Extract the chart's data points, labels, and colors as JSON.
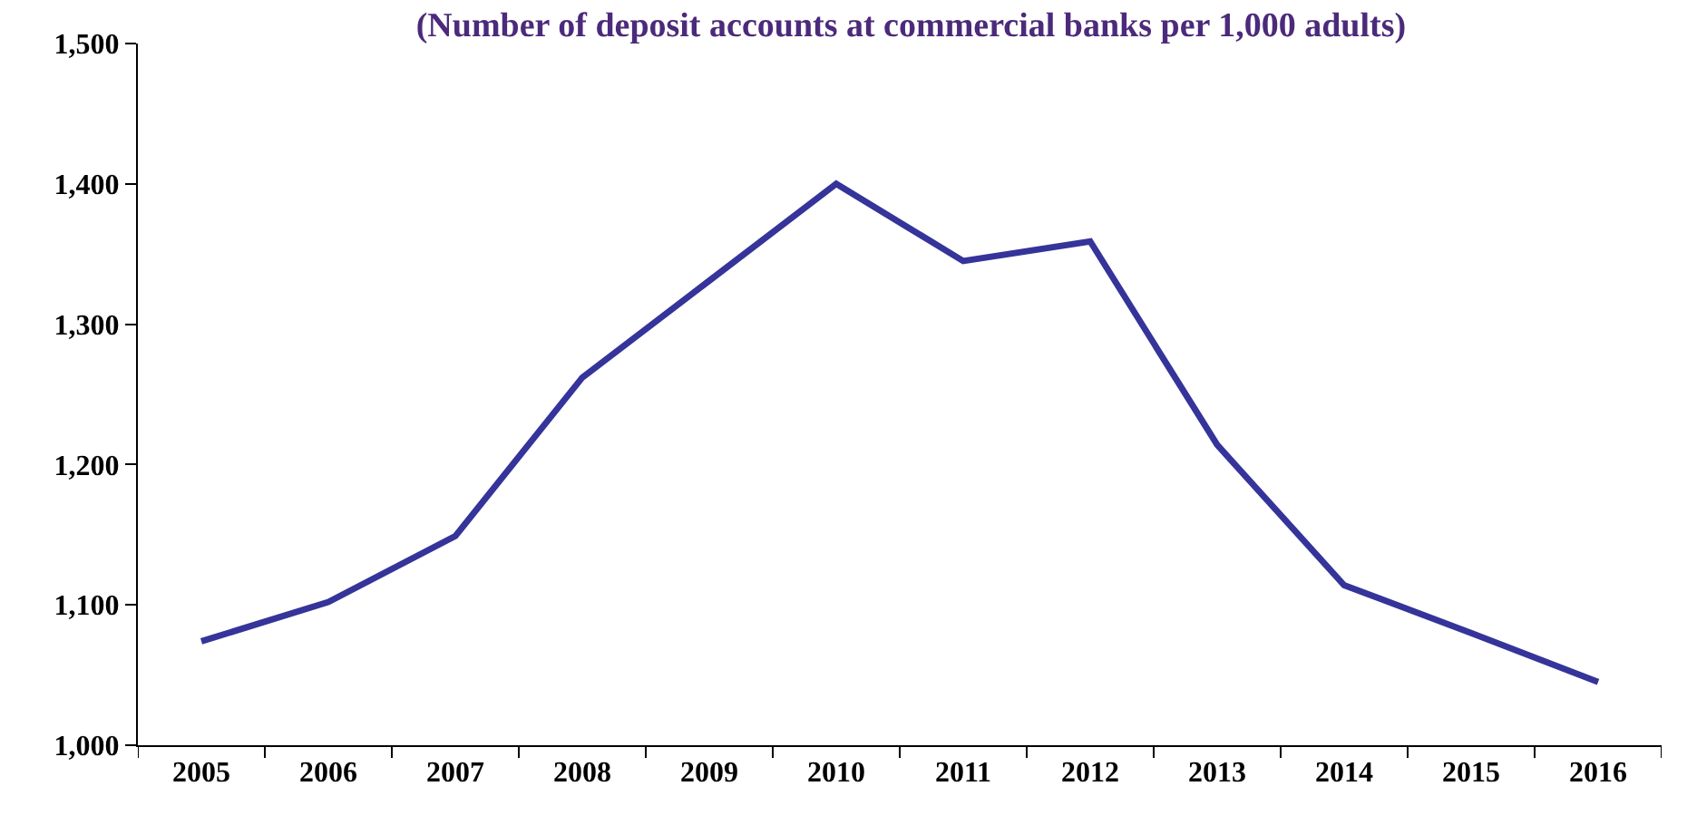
{
  "chart_data": {
    "type": "line",
    "title": "(Number of deposit accounts at commercial banks per 1,000 adults)",
    "categories": [
      "2005",
      "2006",
      "2007",
      "2008",
      "2009",
      "2010",
      "2011",
      "2012",
      "2013",
      "2014",
      "2015",
      "2016"
    ],
    "series": [
      {
        "color": "#35349a",
        "values": [
          1074,
          1102,
          1149,
          1262,
          1331,
          1400,
          1345,
          1359,
          1214,
          1114,
          1080,
          1045
        ]
      }
    ],
    "ylim": [
      1000,
      1500
    ],
    "yticks": [
      {
        "value": 1000,
        "label": "1,000"
      },
      {
        "value": 1100,
        "label": "1,100"
      },
      {
        "value": 1200,
        "label": "1,200"
      },
      {
        "value": 1300,
        "label": "1,300"
      },
      {
        "value": 1400,
        "label": "1,400"
      },
      {
        "value": 1500,
        "label": "1,500"
      }
    ],
    "marker": "none",
    "line_style": "solid"
  }
}
